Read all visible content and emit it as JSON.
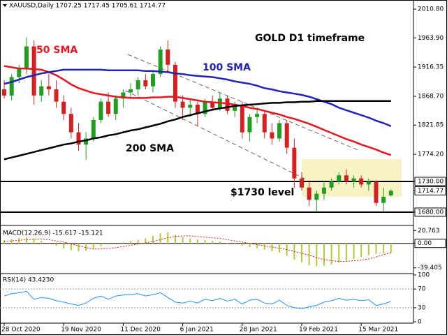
{
  "chart_data": {
    "type": "candlestick",
    "title": "XAUUSD,Daily  1707.25 1717.45 1705.61 1714.77",
    "annotations": {
      "sma50": "50 SMA",
      "sma100": "100 SMA",
      "sma200": "200 SMA",
      "headline": "GOLD D1 timeframe",
      "level": "$1730 level"
    },
    "categories": [
      "28 Oct 2020",
      null,
      null,
      null,
      null,
      null,
      null,
      null,
      "19 Nov 2020",
      null,
      null,
      null,
      null,
      null,
      null,
      null,
      "11 Dec 2020",
      null,
      null,
      null,
      null,
      null,
      null,
      null,
      "6 Jan 2021",
      null,
      null,
      null,
      null,
      null,
      null,
      null,
      "28 Jan 2021",
      null,
      null,
      null,
      null,
      null,
      null,
      null,
      "19 Feb 2021",
      null,
      null,
      null,
      null,
      null,
      null,
      null,
      "15 Mar 2021",
      null,
      null,
      null,
      null
    ],
    "open": [
      1880,
      1870,
      1900,
      1915,
      1950,
      1870,
      1885,
      1880,
      1860,
      1840,
      1810,
      1790,
      1800,
      1830,
      1860,
      1840,
      1865,
      1875,
      1880,
      1895,
      1885,
      1905,
      1945,
      1920,
      1860,
      1850,
      1855,
      1840,
      1860,
      1850,
      1865,
      1845,
      1855,
      1810,
      1835,
      1840,
      1810,
      1800,
      1825,
      1785,
      1735,
      1720,
      1700,
      1710,
      1720,
      1730,
      1740,
      1730,
      1735,
      1725,
      1730,
      1695,
      1707.25
    ],
    "high": [
      1895,
      1905,
      1920,
      1965,
      1960,
      1895,
      1905,
      1895,
      1870,
      1850,
      1825,
      1810,
      1835,
      1865,
      1875,
      1870,
      1880,
      1890,
      1900,
      1905,
      1910,
      1950,
      1960,
      1925,
      1870,
      1865,
      1860,
      1865,
      1870,
      1875,
      1870,
      1860,
      1860,
      1840,
      1850,
      1845,
      1825,
      1830,
      1830,
      1800,
      1745,
      1730,
      1715,
      1730,
      1735,
      1745,
      1750,
      1740,
      1740,
      1735,
      1732,
      1720,
      1717.45
    ],
    "low": [
      1865,
      1862,
      1890,
      1905,
      1855,
      1860,
      1870,
      1850,
      1830,
      1800,
      1780,
      1765,
      1795,
      1825,
      1835,
      1830,
      1850,
      1865,
      1870,
      1880,
      1875,
      1900,
      1910,
      1850,
      1830,
      1835,
      1820,
      1835,
      1845,
      1845,
      1840,
      1835,
      1800,
      1795,
      1825,
      1800,
      1790,
      1795,
      1775,
      1720,
      1715,
      1690,
      1680,
      1700,
      1715,
      1725,
      1725,
      1720,
      1720,
      1715,
      1690,
      1680,
      1705.61
    ],
    "close": [
      1870,
      1900,
      1915,
      1950,
      1870,
      1885,
      1880,
      1860,
      1840,
      1810,
      1790,
      1800,
      1830,
      1860,
      1840,
      1865,
      1875,
      1880,
      1895,
      1885,
      1905,
      1945,
      1920,
      1860,
      1850,
      1855,
      1840,
      1860,
      1850,
      1865,
      1845,
      1855,
      1810,
      1835,
      1840,
      1810,
      1800,
      1825,
      1785,
      1735,
      1720,
      1700,
      1710,
      1720,
      1730,
      1740,
      1730,
      1735,
      1725,
      1730,
      1695,
      1705,
      1714.77
    ],
    "up_color": "#1f9e1f",
    "down_color": "#d62020",
    "series": [
      {
        "name": "50 SMA",
        "color": "#e8141e",
        "values": [
          1918,
          1916,
          1914,
          1914,
          1913,
          1912,
          1908,
          1903,
          1896,
          1888,
          1882,
          1878,
          1874,
          1872,
          1870,
          1868,
          1867,
          1866,
          1866,
          1866,
          1867,
          1867,
          1868,
          1868,
          1866,
          1864,
          1862,
          1860,
          1859,
          1858,
          1857,
          1855,
          1853,
          1850,
          1848,
          1845,
          1842,
          1839,
          1835,
          1832,
          1828,
          1824,
          1819,
          1814,
          1809,
          1804,
          1799,
          1795,
          1790,
          1786,
          1782,
          1777,
          1773
        ]
      },
      {
        "name": "100 SMA",
        "color": "#2222b8",
        "values": [
          1889,
          1892,
          1896,
          1900,
          1903,
          1906,
          1908,
          1910,
          1912,
          1912,
          1912,
          1912,
          1912,
          1912,
          1911,
          1911,
          1911,
          1911,
          1911,
          1910,
          1910,
          1909,
          1908,
          1906,
          1905,
          1903,
          1902,
          1901,
          1900,
          1898,
          1896,
          1893,
          1891,
          1889,
          1886,
          1882,
          1880,
          1877,
          1875,
          1873,
          1871,
          1868,
          1864,
          1860,
          1856,
          1850,
          1846,
          1842,
          1838,
          1834,
          1829,
          1825,
          1820
        ]
      },
      {
        "name": "200 SMA",
        "color": "#000000",
        "values": [
          1766,
          1769,
          1772,
          1775,
          1778,
          1781,
          1784,
          1787,
          1790,
          1792,
          1795,
          1797,
          1800,
          1802,
          1805,
          1807,
          1810,
          1813,
          1815,
          1818,
          1821,
          1824,
          1828,
          1831,
          1835,
          1838,
          1841,
          1844,
          1847,
          1849,
          1851,
          1853,
          1854,
          1855,
          1856,
          1857,
          1858,
          1858,
          1859,
          1859,
          1860,
          1860,
          1861,
          1861,
          1861,
          1861,
          1861,
          1861,
          1861,
          1861,
          1861,
          1861,
          1861
        ]
      }
    ],
    "levels": [
      1730,
      1680
    ],
    "ylim": [
      1659.5,
      2025.6
    ],
    "yticks": [
      {
        "value": 2010.8,
        "label": "2010.80"
      },
      {
        "value": 1963.9,
        "label": "1963.90"
      },
      {
        "value": 1916.35,
        "label": "1916.35"
      },
      {
        "value": 1868.7,
        "label": "1868.70"
      },
      {
        "value": 1821.85,
        "label": "1821.85"
      },
      {
        "value": 1774.2,
        "label": "1774.20"
      },
      {
        "value": 1730,
        "label": "1730.00"
      },
      1714.77,
      {
        "value": 1680,
        "label": "1680.00"
      }
    ],
    "macd": {
      "title": "MACD(12,26,9) -15.617 -15.121",
      "hist_color": "#b5c930",
      "signal_color": "#e8141e",
      "histogram": [
        5,
        7,
        9,
        10,
        8,
        4,
        0,
        -4,
        -8,
        -11,
        -13,
        -12,
        -9,
        -5,
        -2,
        0,
        2,
        4,
        6,
        8,
        12,
        16,
        18,
        14,
        10,
        8,
        6,
        5,
        4,
        3,
        1,
        -1,
        -4,
        -6,
        -8,
        -10,
        -13,
        -15,
        -20,
        -26,
        -31,
        -35,
        -37,
        -36,
        -34,
        -31,
        -28,
        -25,
        -22,
        -19,
        -17,
        -16,
        -15.617
      ],
      "signal": [
        3,
        4,
        5,
        6,
        7,
        7,
        6,
        4,
        2,
        -1,
        -4,
        -7,
        -9,
        -9,
        -8,
        -7,
        -5,
        -3,
        -1,
        1,
        3,
        6,
        9,
        11,
        12,
        12,
        11,
        10,
        9,
        8,
        6,
        4,
        2,
        0,
        -2,
        -4,
        -6,
        -8,
        -10,
        -13,
        -16,
        -19,
        -23,
        -26,
        -28,
        -29,
        -29,
        -28,
        -27,
        -25,
        -22,
        -18,
        -15.121
      ],
      "ylim": [
        -48.7,
        27.8
      ],
      "yticks": [
        20.763,
        {
          "value": 0,
          "label": "0.00"
        },
        -39.405
      ]
    },
    "rsi": {
      "title": "RSI(14) 43.4230",
      "color": "#1e90ff",
      "values": [
        55,
        60,
        62,
        65,
        48,
        52,
        50,
        45,
        42,
        38,
        35,
        40,
        50,
        55,
        48,
        55,
        57,
        58,
        60,
        55,
        58,
        62,
        52,
        42,
        40,
        44,
        40,
        48,
        45,
        50,
        44,
        48,
        38,
        46,
        48,
        40,
        38,
        46,
        35,
        30,
        28,
        32,
        35,
        42,
        45,
        50,
        46,
        48,
        45,
        47,
        35,
        38,
        43.423
      ],
      "ylim": [
        0,
        100
      ],
      "yticks": [
        100,
        70,
        30,
        0
      ],
      "levels": [
        70,
        30
      ]
    }
  }
}
